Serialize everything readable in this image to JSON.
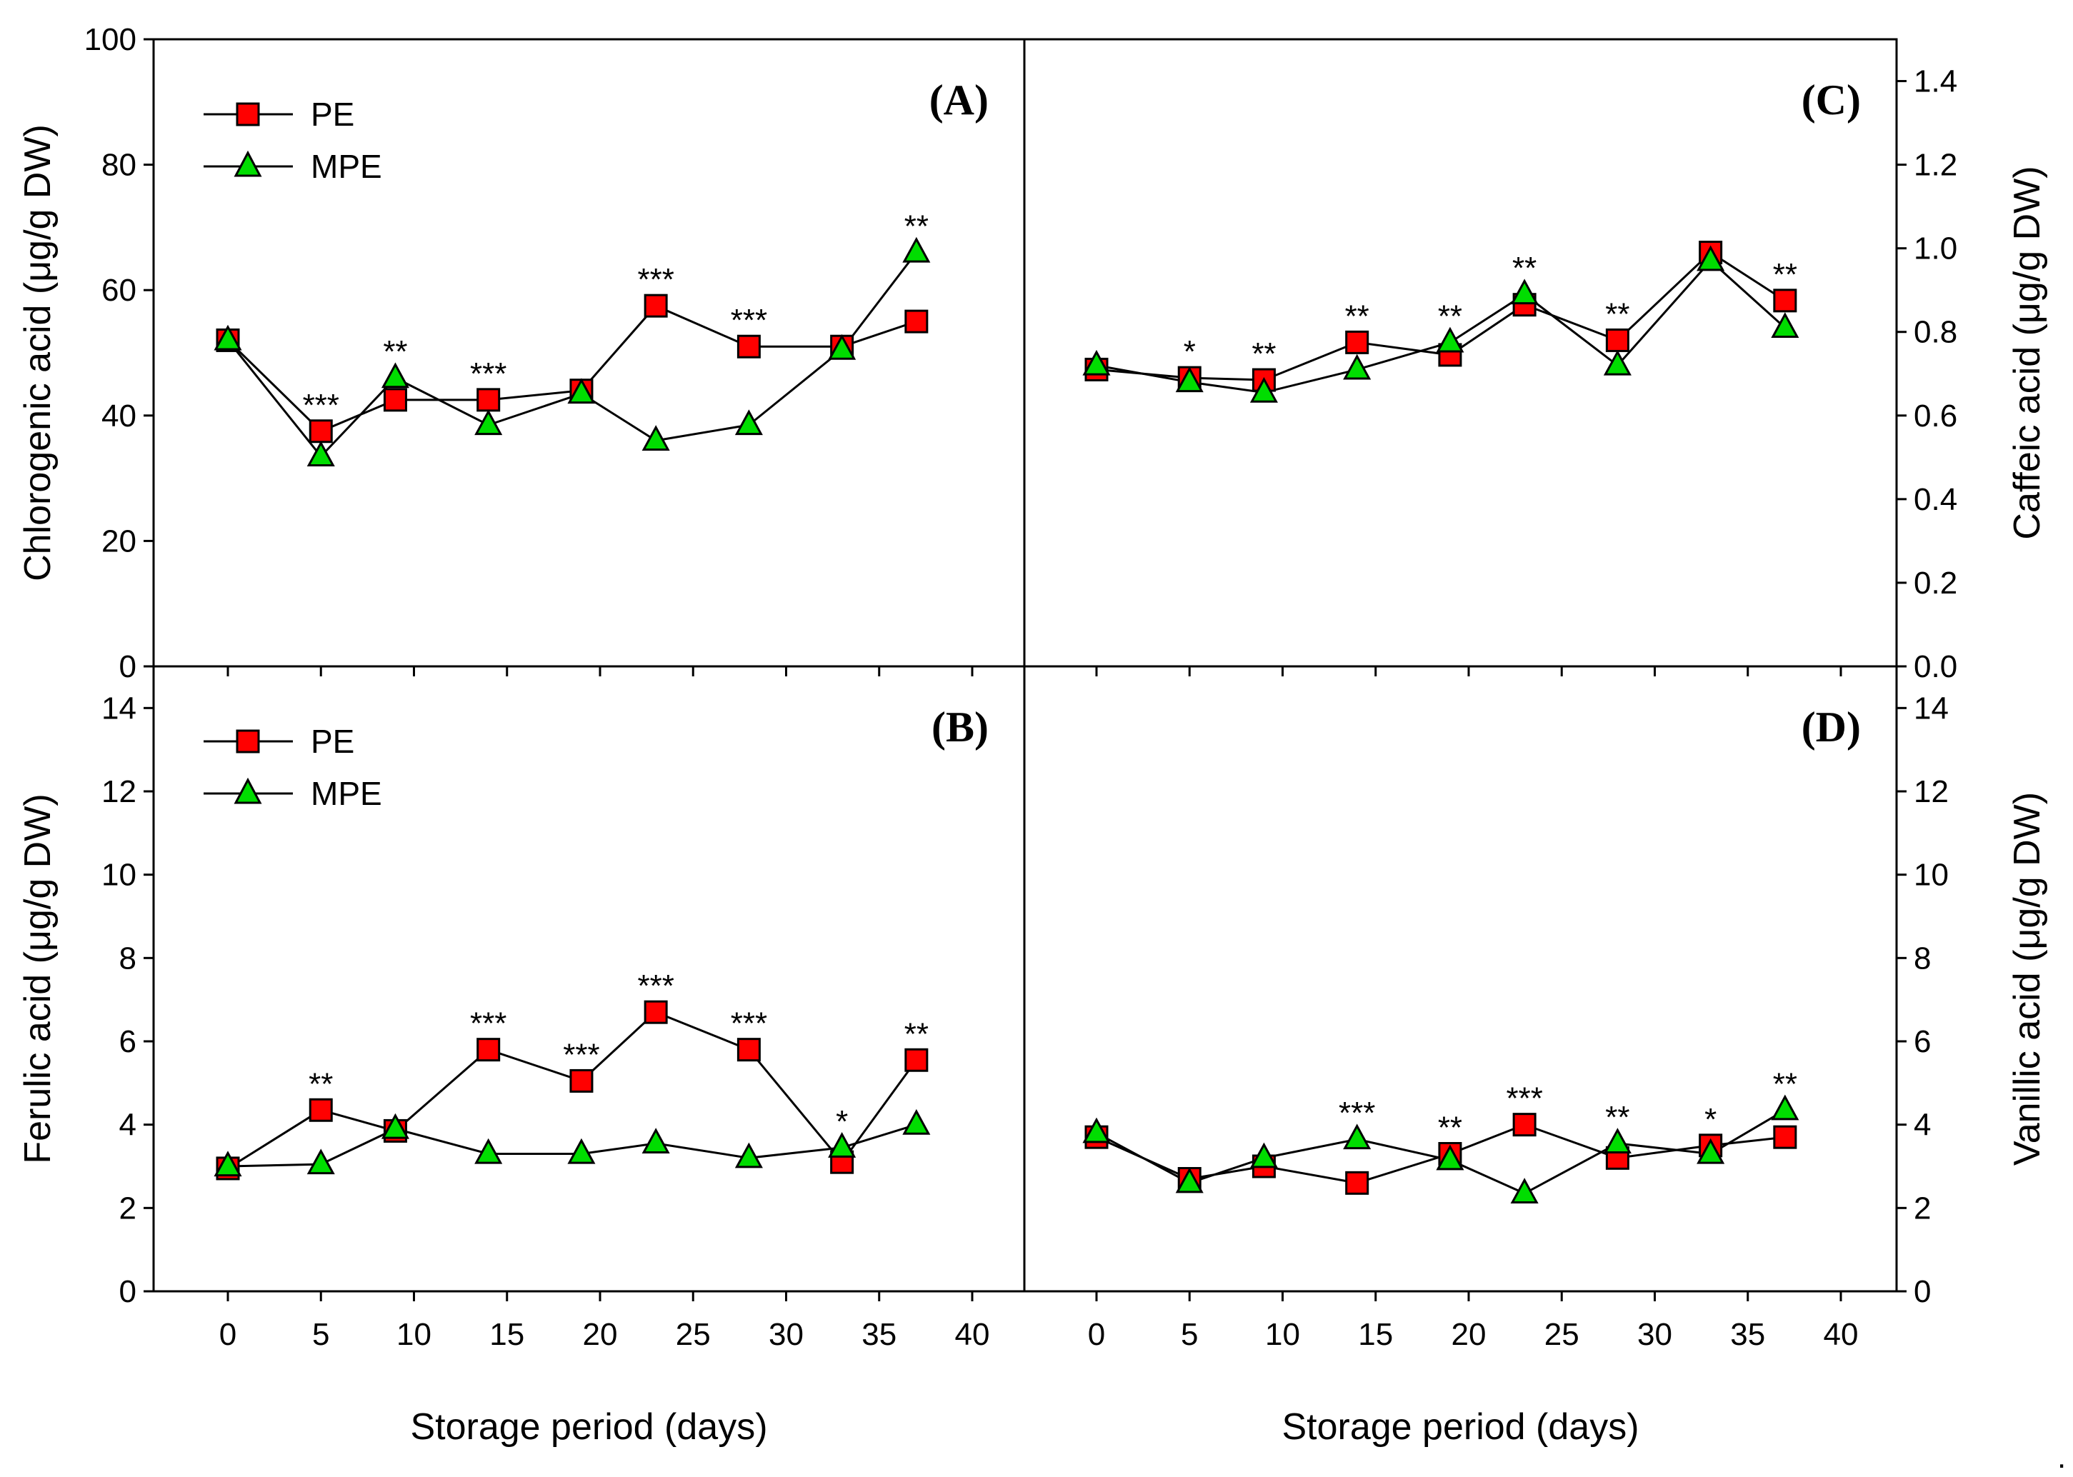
{
  "figure": {
    "trailing_mark": "."
  },
  "colors": {
    "PE": "#ff0000",
    "MPE": "#00dd00",
    "line": "#000000"
  },
  "chart_data": [
    {
      "id": "A",
      "type": "line",
      "panel_label": "(A)",
      "ylabel": "Chlorogenic acid (μg/g DW)",
      "xlabel": "",
      "ylim": [
        0,
        100
      ],
      "yticks": [
        "0",
        "20",
        "40",
        "60",
        "80",
        "100"
      ],
      "y_axis_side": "left",
      "legend": [
        "PE",
        "MPE"
      ],
      "legend_position": "top-left",
      "x": [
        0,
        5,
        9,
        14,
        19,
        23,
        28,
        33,
        37
      ],
      "series": [
        {
          "name": "PE",
          "marker": "square",
          "values": [
            52,
            37.5,
            42.5,
            42.5,
            44,
            57.5,
            51,
            51,
            55
          ]
        },
        {
          "name": "MPE",
          "marker": "triangle",
          "values": [
            52,
            33.5,
            46,
            38.5,
            43.5,
            36,
            38.5,
            50.5,
            66
          ]
        }
      ],
      "annotations": [
        {
          "x": 5,
          "text": "***"
        },
        {
          "x": 9,
          "text": "**"
        },
        {
          "x": 14,
          "text": "***"
        },
        {
          "x": 23,
          "text": "***"
        },
        {
          "x": 28,
          "text": "***"
        },
        {
          "x": 37,
          "text": "**"
        }
      ]
    },
    {
      "id": "C",
      "type": "line",
      "panel_label": "(C)",
      "ylabel": "Caffeic acid (μg/g DW)",
      "xlabel": "",
      "ylim": [
        0,
        1.5
      ],
      "yticks": [
        "0.0",
        "0.2",
        "0.4",
        "0.6",
        "0.8",
        "1.0",
        "1.2",
        "1.4"
      ],
      "y_axis_side": "right",
      "legend": [],
      "x": [
        0,
        5,
        9,
        14,
        19,
        23,
        28,
        33,
        37
      ],
      "series": [
        {
          "name": "PE",
          "marker": "square",
          "values": [
            0.71,
            0.69,
            0.685,
            0.775,
            0.745,
            0.865,
            0.78,
            0.99,
            0.875
          ]
        },
        {
          "name": "MPE",
          "marker": "triangle",
          "values": [
            0.72,
            0.68,
            0.655,
            0.71,
            0.775,
            0.89,
            0.72,
            0.97,
            0.81
          ]
        }
      ],
      "annotations": [
        {
          "x": 5,
          "text": "*"
        },
        {
          "x": 9,
          "text": "**"
        },
        {
          "x": 14,
          "text": "**"
        },
        {
          "x": 19,
          "text": "**"
        },
        {
          "x": 23,
          "text": "**"
        },
        {
          "x": 28,
          "text": "**"
        },
        {
          "x": 37,
          "text": "**"
        }
      ]
    },
    {
      "id": "B",
      "type": "line",
      "panel_label": "(B)",
      "ylabel": "Ferulic acid (μg/g DW)",
      "xlabel": "Storage period (days)",
      "ylim": [
        0,
        15
      ],
      "yticks": [
        "0",
        "2",
        "4",
        "6",
        "8",
        "10",
        "12",
        "14"
      ],
      "xticks": [
        "0",
        "5",
        "10",
        "15",
        "20",
        "25",
        "30",
        "35",
        "40"
      ],
      "xlim": [
        -4,
        42
      ],
      "y_axis_side": "left",
      "legend": [
        "PE",
        "MPE"
      ],
      "legend_position": "top-left",
      "x": [
        0,
        5,
        9,
        14,
        19,
        23,
        28,
        33,
        37
      ],
      "series": [
        {
          "name": "PE",
          "marker": "square",
          "values": [
            2.95,
            4.35,
            3.85,
            5.8,
            5.05,
            6.7,
            5.8,
            3.1,
            5.55
          ]
        },
        {
          "name": "MPE",
          "marker": "triangle",
          "values": [
            3.0,
            3.05,
            3.9,
            3.3,
            3.3,
            3.55,
            3.2,
            3.45,
            4.0
          ]
        }
      ],
      "annotations": [
        {
          "x": 5,
          "text": "**"
        },
        {
          "x": 14,
          "text": "***"
        },
        {
          "x": 19,
          "text": "***"
        },
        {
          "x": 23,
          "text": "***"
        },
        {
          "x": 28,
          "text": "***"
        },
        {
          "x": 33,
          "text": "*"
        },
        {
          "x": 37,
          "text": "**"
        }
      ]
    },
    {
      "id": "D",
      "type": "line",
      "panel_label": "(D)",
      "ylabel": "Vanillic acid (μg/g DW)",
      "xlabel": "Storage period (days)",
      "ylim": [
        0,
        15
      ],
      "yticks": [
        "0",
        "2",
        "4",
        "6",
        "8",
        "10",
        "12",
        "14"
      ],
      "xticks": [
        "0",
        "5",
        "10",
        "15",
        "20",
        "25",
        "30",
        "35",
        "40"
      ],
      "xlim": [
        -4,
        42
      ],
      "y_axis_side": "right",
      "legend": [],
      "x": [
        0,
        5,
        9,
        14,
        19,
        23,
        28,
        33,
        37
      ],
      "series": [
        {
          "name": "PE",
          "marker": "square",
          "values": [
            3.7,
            2.7,
            3.0,
            2.6,
            3.3,
            4.0,
            3.2,
            3.5,
            3.7
          ]
        },
        {
          "name": "MPE",
          "marker": "triangle",
          "values": [
            3.8,
            2.6,
            3.2,
            3.65,
            3.15,
            2.35,
            3.55,
            3.3,
            4.35
          ]
        }
      ],
      "annotations": [
        {
          "x": 14,
          "text": "***"
        },
        {
          "x": 19,
          "text": "**"
        },
        {
          "x": 23,
          "text": "***"
        },
        {
          "x": 28,
          "text": "**"
        },
        {
          "x": 33,
          "text": "*"
        },
        {
          "x": 37,
          "text": "**"
        }
      ]
    }
  ]
}
